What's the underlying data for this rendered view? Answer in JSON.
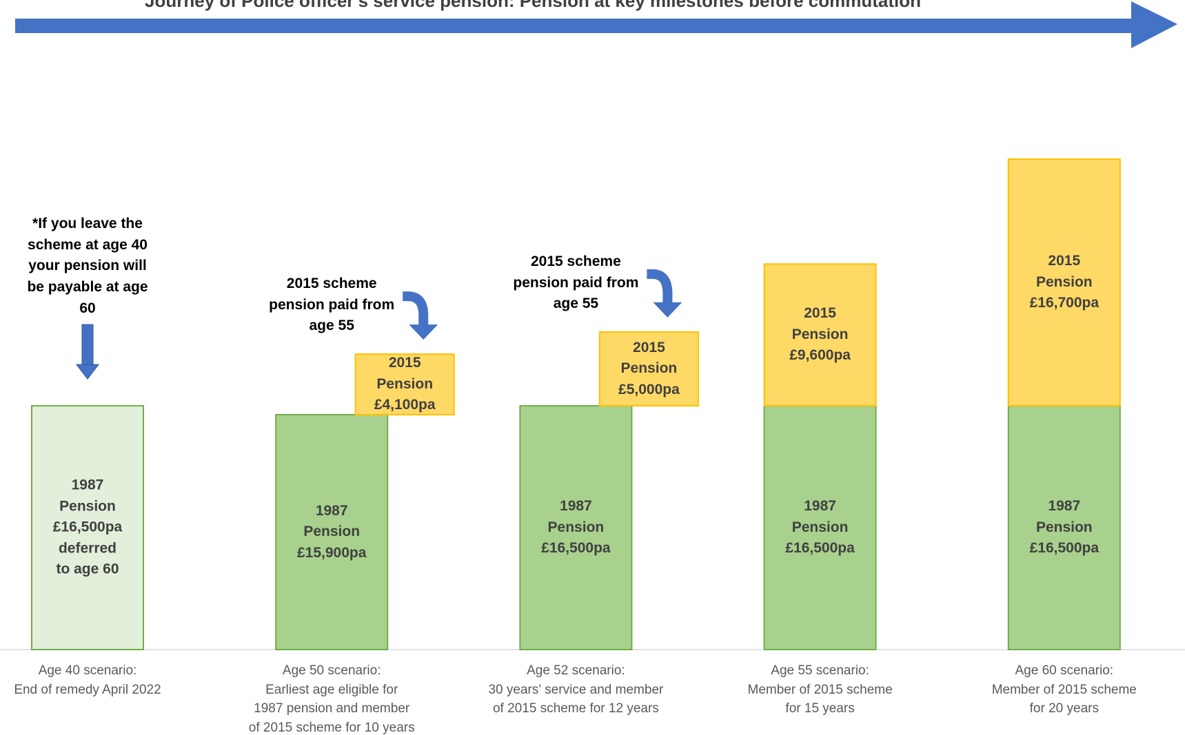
{
  "chart_data": {
    "type": "bar",
    "stacked": true,
    "title": "Journey of Police officer's service pension: Pension at key milestones before commutation",
    "categories": [
      "Age 40 scenario:\nEnd of remedy April 2022",
      "Age 50 scenario:\nEarliest age eligible for\n1987 pension and member\nof 2015 scheme for 10 years",
      "Age 52 scenario:\n30 years' service and member\nof 2015 scheme for 12 years",
      "Age 55 scenario:\nMember of 2015 scheme\nfor 15 years",
      "Age 60 scenario:\nMember of 2015 scheme\nfor 20 years"
    ],
    "series": [
      {
        "colors": [
          "#e2efda",
          "#a9d18e",
          "#a9d18e",
          "#a9d18e",
          "#a9d18e"
        ],
        "edgecolor": "#70ad47",
        "values": [
          16500,
          15900,
          16500,
          16500,
          16500
        ],
        "value_labels": [
          "1987\nPension\n£16,500pa\ndeferred\nto age 60",
          "1987\nPension\n£15,900pa",
          "1987\nPension\n£16,500pa",
          "1987\nPension\n£16,500pa",
          "1987\nPension\n£16,500pa"
        ]
      },
      {
        "color": "#ffd966",
        "edgecolor": "#ffc000",
        "values": [
          null,
          4100,
          5000,
          9600,
          16700
        ],
        "value_labels": [
          null,
          "2015\nPension\n£4,100pa",
          "2015\nPension\n£5,000pa",
          "2015\nPension\n£9,600pa",
          "2015\nPension\n£16,700pa"
        ]
      }
    ],
    "annotations": [
      {
        "text": "*If you leave the\nscheme at age 40\nyour pension will\nbe payable at age\n60",
        "category": 0
      },
      {
        "text": "2015 scheme\npension paid from\nage 55",
        "category": 1
      },
      {
        "text": "2015 scheme\npension paid from\nage 55",
        "category": 2
      }
    ]
  }
}
